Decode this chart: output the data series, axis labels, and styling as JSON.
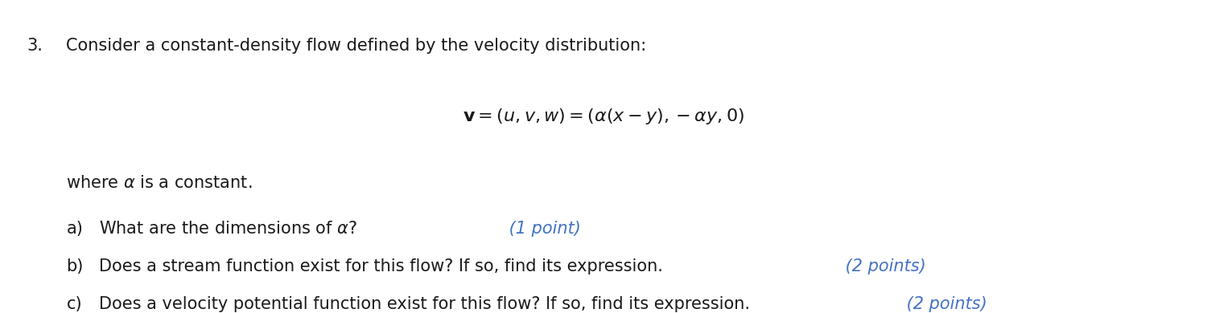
{
  "background_color": "#ffffff",
  "fig_width": 15.0,
  "fig_height": 3.9,
  "dpi": 100,
  "black_color": "#1a1a1a",
  "blue_color": "#4472C4",
  "line1_label": "3.",
  "line1_text": "Consider a constant-density flow defined by the velocity distribution:",
  "formula_text": "$\\mathbf{v} = (u, v, w) = (\\alpha(x - y), -\\alpha y, 0)$",
  "where_text": "where $\\alpha$ is a constant.",
  "qa_label": "a)",
  "qa_text": "  What are the dimensions of $\\alpha$?",
  "qa_points": " (1 point)",
  "qb_label": "b)",
  "qb_text": "  Does a stream function exist for this flow? If so, find its expression.",
  "qb_points": " (2 points)",
  "qc_label": "c)",
  "qc_text": "  Does a velocity potential function exist for this flow? If so, find its expression.",
  "qc_points": " (2 points)",
  "main_fontsize": 15,
  "formula_fontsize": 16,
  "points_fontsize": 15
}
